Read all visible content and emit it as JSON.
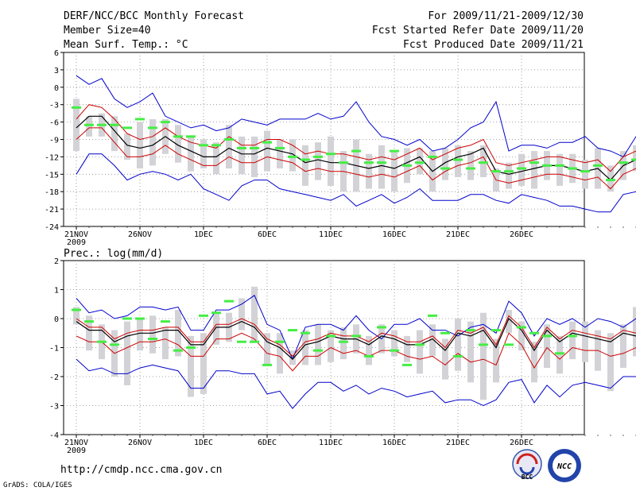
{
  "header": {
    "title": "DERF/NCC/BCC Monthly Forecast",
    "member_size": "Member Size=40",
    "variable": "Mean Surf. Temp.: °C",
    "period": "For 2009/11/21-2009/12/30",
    "started": "Fcst Started Refer Date 2009/11/20",
    "produced": "Fcst Produced Date 2009/11/21"
  },
  "footer": {
    "url": "http://cmdp.ncc.cma.gov.cn",
    "credit": "GrADS: COLA/IGES",
    "logo_left": "BCC",
    "logo_right": "NCC"
  },
  "colors": {
    "range": "#0000cc",
    "spread": "#cc0000",
    "mean": "#000000",
    "box": "#d3d3d7",
    "marker": "#44ee44",
    "grid": "#888888"
  },
  "chart_data": [
    {
      "type": "line",
      "title": "Mean Surf. Temp.: °C",
      "x_ticks": [
        "21NOV",
        "26NOV",
        "1DEC",
        "6DEC",
        "11DEC",
        "16DEC",
        "21DEC",
        "26DEC"
      ],
      "x_year": "2009",
      "y_ticks": [
        6,
        3,
        0,
        -3,
        -6,
        -9,
        -12,
        -15,
        -18,
        -21,
        -24
      ],
      "ylim": [
        -24,
        6
      ],
      "grid": true,
      "series": [
        {
          "name": "max",
          "values": [
            2,
            0.5,
            1.5,
            -2,
            -3.5,
            -2.5,
            -1,
            -5,
            -6,
            -7,
            -6.5,
            -7.5,
            -7,
            -5.5,
            -6,
            -6.5,
            -5.5,
            -5.5,
            -5.5,
            -4.5,
            -5.5,
            -5,
            -2.5,
            -6,
            -8.5,
            -9,
            -10,
            -9,
            -11,
            -10.5,
            -9,
            -7,
            -6,
            -2.5,
            -11,
            -10,
            -10,
            -10.5,
            -9.5,
            -9.5,
            -8.5,
            -10.5,
            -11,
            -12,
            -8.5,
            -7,
            -8,
            -10,
            -6
          ]
        },
        {
          "name": "mean_plus_sd",
          "values": [
            -5.5,
            -3,
            -3.5,
            -5.5,
            -8,
            -9,
            -8.5,
            -7,
            -8.5,
            -9.5,
            -10,
            -10.5,
            -8.5,
            -10,
            -10,
            -9,
            -9,
            -10,
            -11.5,
            -11,
            -11.5,
            -11.5,
            -12,
            -12.5,
            -12,
            -12.5,
            -11.5,
            -10.5,
            -12.5,
            -11.5,
            -10.5,
            -10,
            -9,
            -13,
            -13.5,
            -13,
            -12.5,
            -12,
            -12,
            -12.5,
            -13,
            -12.5,
            -14.5,
            -12,
            -11,
            -11.5,
            -12.5,
            -14,
            -11
          ]
        },
        {
          "name": "mean",
          "values": [
            -7,
            -5,
            -5,
            -7.5,
            -10,
            -10.5,
            -10,
            -8.5,
            -10,
            -11,
            -12,
            -12,
            -10.5,
            -11.5,
            -11.5,
            -10.5,
            -11,
            -11.5,
            -13,
            -12.5,
            -13,
            -13,
            -13.5,
            -14,
            -13.5,
            -14,
            -13,
            -12,
            -14.5,
            -13,
            -12,
            -11.5,
            -10.5,
            -14.5,
            -15,
            -14.5,
            -14,
            -13.5,
            -13.5,
            -14,
            -14.5,
            -14,
            -16,
            -13.5,
            -12.5,
            -13,
            -14,
            -15.5,
            -12.5
          ]
        },
        {
          "name": "mean_minus_sd",
          "values": [
            -9,
            -7,
            -7,
            -9.5,
            -12,
            -12,
            -11.5,
            -10,
            -11.5,
            -12.5,
            -13.5,
            -13.5,
            -12,
            -13,
            -13,
            -12,
            -12.5,
            -13,
            -14.5,
            -14,
            -14.5,
            -14.5,
            -15,
            -15.5,
            -15,
            -15.5,
            -14.5,
            -13.5,
            -16,
            -14.5,
            -13.5,
            -13,
            -12,
            -16,
            -16.5,
            -16,
            -15.5,
            -15,
            -15,
            -15.5,
            -16,
            -15.5,
            -17.5,
            -15,
            -14,
            -14.5,
            -15.5,
            -17,
            -14
          ]
        },
        {
          "name": "min",
          "values": [
            -15,
            -11.5,
            -11.5,
            -13.5,
            -16,
            -15,
            -14.5,
            -15,
            -16,
            -15,
            -17.5,
            -18.5,
            -19.5,
            -17,
            -16,
            -16,
            -17.5,
            -18,
            -18.5,
            -19,
            -19.5,
            -18.5,
            -20.5,
            -19.5,
            -18.5,
            -20,
            -19,
            -17.5,
            -19.5,
            -19.5,
            -19.5,
            -18.5,
            -18.5,
            -19.5,
            -20,
            -18.5,
            -19,
            -19.5,
            -20.5,
            -20.5,
            -21,
            -21.5,
            -21.5,
            -18.5,
            -18,
            -19,
            -20,
            -21.5,
            -19
          ]
        },
        {
          "name": "box_upper",
          "values": [
            -2,
            -5,
            -4.5,
            -5,
            -8,
            -6,
            -5.5,
            -5.5,
            -6.5,
            -8.5,
            -9,
            -9.5,
            -6.5,
            -8.5,
            -8.5,
            -7.5,
            -9,
            -9,
            -10,
            -9.5,
            -8.5,
            -11,
            -9,
            -11.5,
            -10,
            -11,
            -10.5,
            -10.5,
            -11,
            -10.5,
            -10,
            -11,
            -10,
            -14,
            -13,
            -11.5,
            -11,
            -11,
            -11.5,
            -11.5,
            -12.5,
            -10.5,
            -13.5,
            -11,
            -10,
            -11,
            -12,
            -13,
            -11
          ]
        },
        {
          "name": "box_lower",
          "values": [
            -11,
            -8.5,
            -8.5,
            -11,
            -12.5,
            -14,
            -13.5,
            -11.5,
            -13,
            -14.5,
            -14,
            -15,
            -14,
            -15,
            -15.5,
            -14.5,
            -14,
            -14.5,
            -17,
            -16,
            -17,
            -18,
            -18,
            -17.5,
            -17.5,
            -18,
            -16.5,
            -15,
            -18,
            -16,
            -15.5,
            -16,
            -15.5,
            -18,
            -17.5,
            -17,
            -17.5,
            -16,
            -17,
            -16.5,
            -17.5,
            -17.5,
            -18,
            -16,
            -14.5,
            -15,
            -16,
            -18,
            -17.5
          ]
        },
        {
          "name": "marker",
          "values": [
            -3.5,
            -6.5,
            -6.5,
            -6.5,
            -7,
            -5.5,
            -7,
            -6,
            -8.5,
            -8.5,
            -10,
            -10,
            -9,
            -10.5,
            -10.5,
            -9.5,
            -10.5,
            -12,
            -12.5,
            -12,
            -11.5,
            -13,
            -11,
            -13,
            -13,
            -11,
            -13.5,
            -13,
            -12,
            -14,
            -12.5,
            -14,
            -13,
            -14.5,
            -14.5,
            -14,
            -13,
            -13.5,
            -13.5,
            -14,
            -14.5,
            -13.5,
            -16,
            -13,
            -12.5,
            -12.5,
            -13.5,
            -15,
            -11.5
          ]
        }
      ]
    },
    {
      "type": "line",
      "title": "Prec.: log(mm/d)",
      "x_ticks": [
        "21NOV",
        "26NOV",
        "1DEC",
        "6DEC",
        "11DEC",
        "16DEC",
        "21DEC",
        "26DEC"
      ],
      "x_year": "2009",
      "y_ticks": [
        2,
        1,
        0,
        -1,
        -2,
        -3,
        -4
      ],
      "ylim": [
        -4,
        2
      ],
      "grid": true,
      "series": [
        {
          "name": "max",
          "values": [
            0.7,
            0.2,
            0.3,
            0,
            0.1,
            0.4,
            0.4,
            0.3,
            0.4,
            -0.4,
            -0.4,
            0.3,
            0.3,
            0.5,
            0.8,
            -0.2,
            -0.4,
            -1.4,
            -0.3,
            -0.2,
            -0.2,
            -0.4,
            0.1,
            -0.4,
            -0.7,
            -0.2,
            -0.2,
            0,
            -0.4,
            -0.4,
            -0.6,
            -0.3,
            -0.2,
            -0.5,
            0.6,
            0.2,
            -0.6,
            0,
            -0.2,
            0,
            -0.3,
            0,
            -0.1,
            -0.3,
            0,
            -0.5,
            -0.5,
            -0.8,
            -0.1
          ]
        },
        {
          "name": "mean_plus_sd",
          "values": [
            0,
            -0.3,
            -0.3,
            -0.7,
            -0.5,
            -0.4,
            -0.4,
            -0.3,
            -0.3,
            -0.8,
            -0.8,
            -0.2,
            -0.2,
            0,
            -0.2,
            -0.7,
            -0.9,
            -1.3,
            -0.8,
            -0.7,
            -0.5,
            -0.6,
            -0.6,
            -0.8,
            -0.5,
            -0.6,
            -0.8,
            -0.8,
            -0.6,
            -1,
            -0.4,
            -0.5,
            -0.3,
            -0.9,
            0.1,
            -0.3,
            -1,
            -0.3,
            -0.7,
            -0.4,
            -0.5,
            -0.6,
            -0.7,
            -0.4,
            -0.5,
            -0.6,
            -0.7,
            -1,
            -0.5
          ]
        },
        {
          "name": "mean",
          "values": [
            -0.1,
            -0.4,
            -0.4,
            -0.8,
            -0.6,
            -0.5,
            -0.5,
            -0.4,
            -0.4,
            -0.9,
            -0.9,
            -0.3,
            -0.3,
            -0.1,
            -0.3,
            -0.8,
            -1,
            -1.4,
            -0.9,
            -0.8,
            -0.6,
            -0.7,
            -0.7,
            -0.9,
            -0.6,
            -0.7,
            -0.9,
            -0.9,
            -0.7,
            -1.1,
            -0.5,
            -0.6,
            -0.4,
            -1,
            0,
            -0.4,
            -1.1,
            -0.4,
            -0.8,
            -0.5,
            -0.6,
            -0.7,
            -0.8,
            -0.5,
            -0.6,
            -0.7,
            -0.8,
            -1.1,
            -0.6
          ]
        },
        {
          "name": "mean_minus_sd",
          "values": [
            -0.6,
            -0.8,
            -0.8,
            -1.2,
            -1,
            -0.8,
            -0.8,
            -0.7,
            -0.9,
            -1.3,
            -1.3,
            -0.7,
            -0.7,
            -0.5,
            -0.7,
            -1.2,
            -1.3,
            -1.8,
            -1.3,
            -1.3,
            -1,
            -1.2,
            -1.1,
            -1.3,
            -1.1,
            -1.1,
            -1.3,
            -1.4,
            -1.3,
            -1.6,
            -1.2,
            -1.5,
            -1.4,
            -1.6,
            -0.5,
            -0.9,
            -1.7,
            -1,
            -1.4,
            -1,
            -1.1,
            -1.1,
            -1.3,
            -1.2,
            -1,
            -1.1,
            -1.3,
            -1.6,
            -1.1
          ]
        },
        {
          "name": "min",
          "values": [
            -1.4,
            -1.8,
            -1.7,
            -1.9,
            -1.9,
            -1.7,
            -1.6,
            -1.7,
            -1.8,
            -2.4,
            -2.4,
            -1.8,
            -1.8,
            -1.9,
            -1.9,
            -2.6,
            -2.5,
            -3.1,
            -2.6,
            -2.2,
            -2.2,
            -2.5,
            -2.3,
            -2.6,
            -2.4,
            -2.5,
            -2.7,
            -2.6,
            -2.5,
            -2.9,
            -2.8,
            -2.8,
            -3,
            -2.8,
            -2.2,
            -2.1,
            -2.9,
            -2.3,
            -2.7,
            -2.3,
            -2.2,
            -2.3,
            -2.4,
            -2,
            -2,
            -2.3,
            -2.3,
            -2.9,
            -2.4
          ]
        },
        {
          "name": "box_upper",
          "values": [
            0.4,
            0.1,
            -0.2,
            -0.4,
            -0.1,
            0,
            0.1,
            -0.3,
            0.3,
            -0.6,
            -0.5,
            0.2,
            0.2,
            0.7,
            1.1,
            -0.5,
            -0.5,
            -1.1,
            -0.4,
            -0.2,
            -0.4,
            -0.3,
            -0.2,
            -0.6,
            -0.2,
            -0.4,
            -0.6,
            -0.4,
            -0.2,
            -0.7,
            0,
            -0.1,
            0.2,
            -0.7,
            0.3,
            -0.1,
            -0.8,
            -0.2,
            -0.6,
            -0.1,
            -0.1,
            -0.4,
            -0.5,
            -0.2,
            0.4,
            -0.2,
            -0.4,
            -0.6,
            -0.3
          ]
        },
        {
          "name": "box_lower",
          "values": [
            -0.2,
            -1.1,
            -1.4,
            -2,
            -2.3,
            -1.1,
            -1.2,
            -1.4,
            -1.3,
            -2.7,
            -2.6,
            -0.9,
            -0.8,
            -0.4,
            -0.8,
            -1.6,
            -1.9,
            -1.6,
            -1.6,
            -1.6,
            -1.5,
            -1.4,
            -1.2,
            -1.6,
            -1.2,
            -1.3,
            -1.5,
            -1.9,
            -1.3,
            -2.1,
            -1.8,
            -2.2,
            -2.8,
            -2.2,
            -0.5,
            -1.1,
            -2.2,
            -1.7,
            -1.9,
            -1.4,
            -1.5,
            -1.8,
            -2.5,
            -1.7,
            -1.3,
            -1.2,
            -1.3,
            -1.9,
            -1.5
          ]
        },
        {
          "name": "marker",
          "values": [
            0.3,
            -0.1,
            -0.8,
            -0.9,
            0,
            0,
            -0.7,
            -0.1,
            -1.1,
            -1,
            0.1,
            0.2,
            0.6,
            -0.8,
            -0.8,
            -1.6,
            -0.8,
            -0.4,
            -0.5,
            -1.1,
            -0.6,
            -0.8,
            -0.6,
            -1.3,
            -0.3,
            -1.1,
            -1.6,
            -0.9,
            0.1,
            -0.5,
            -1.3,
            -0.4,
            -0.9,
            -0.4,
            -0.9,
            -0.3,
            -0.5,
            -0.6,
            -1.2,
            -0.6
          ]
        }
      ]
    }
  ]
}
